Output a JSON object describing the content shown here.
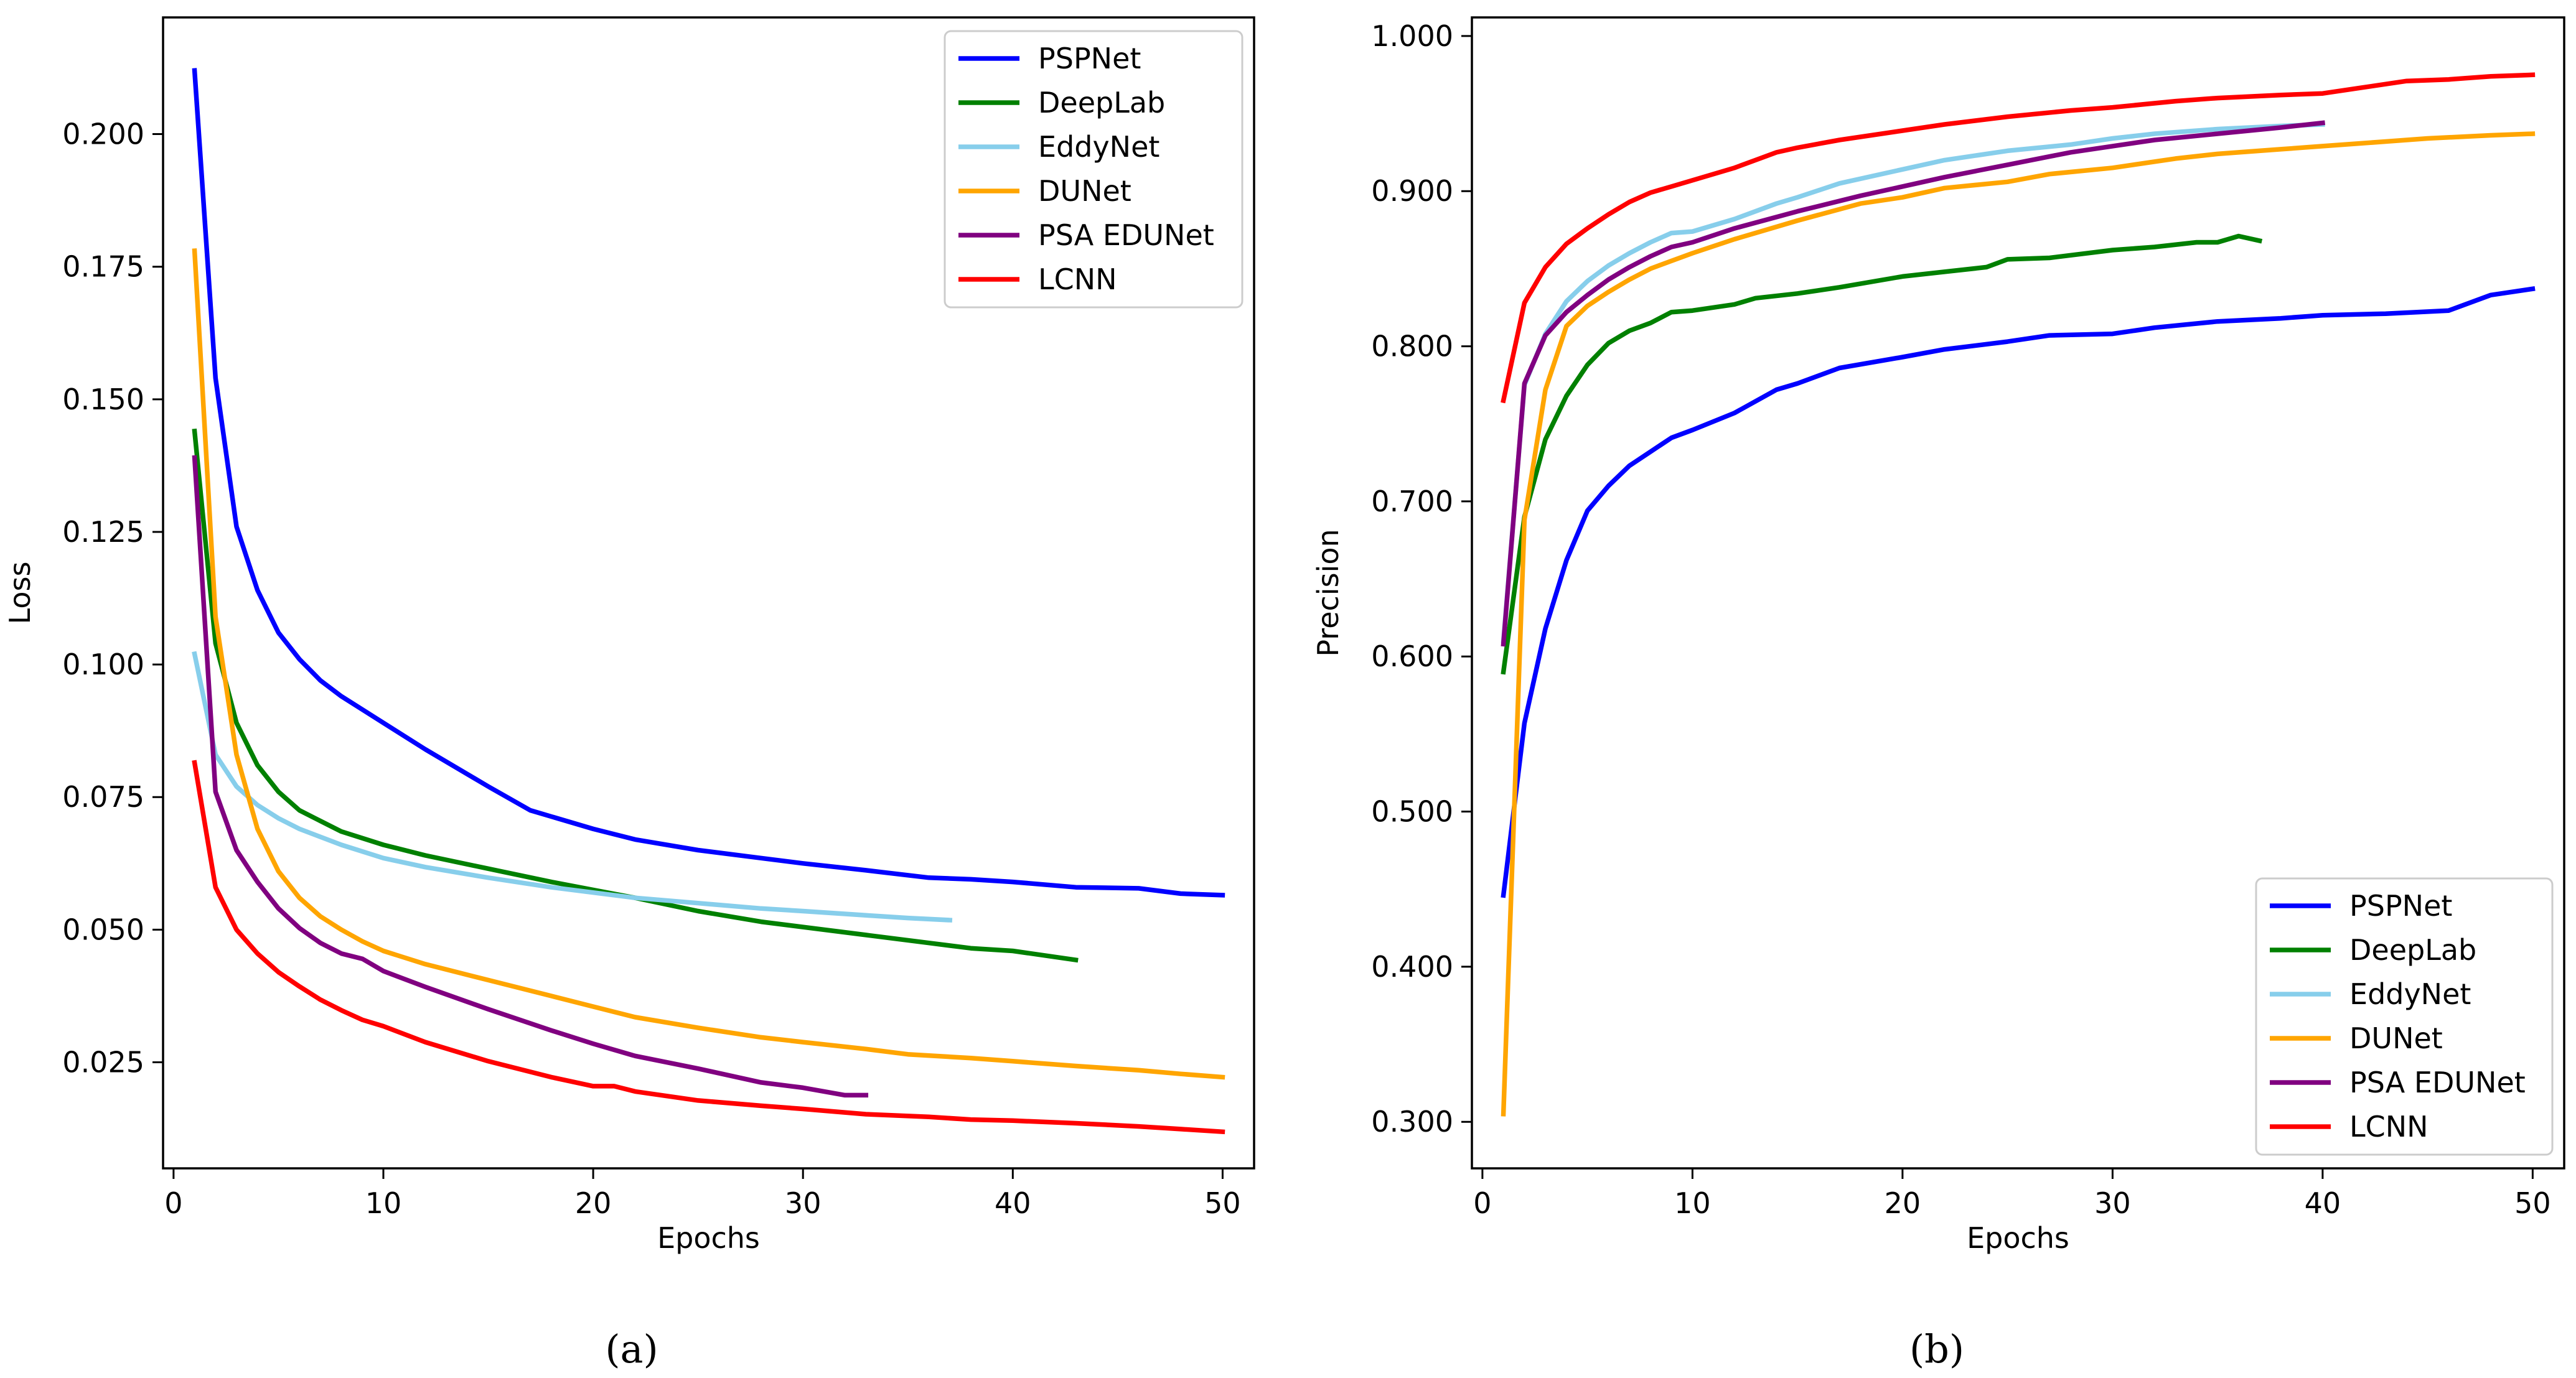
{
  "figure": {
    "caption_a": "(a)",
    "caption_b": "(b)"
  },
  "chart_data": [
    {
      "id": "a",
      "type": "line",
      "title": "",
      "xlabel": "Epochs",
      "ylabel": "Loss",
      "xlim": [
        -0.5,
        51.5
      ],
      "ylim": [
        0.005,
        0.222
      ],
      "xticks": [
        0,
        10,
        20,
        30,
        40,
        50
      ],
      "xtick_labels": [
        "0",
        "10",
        "20",
        "30",
        "40",
        "50"
      ],
      "yticks": [
        0.025,
        0.05,
        0.075,
        0.1,
        0.125,
        0.15,
        0.175,
        0.2
      ],
      "ytick_labels": [
        "0.025",
        "0.050",
        "0.075",
        "0.100",
        "0.125",
        "0.150",
        "0.175",
        "0.200"
      ],
      "grid": false,
      "legend_position": "top-right",
      "series": [
        {
          "name": "PSPNet",
          "color": "#0000ff",
          "x": [
            1,
            2,
            3,
            4,
            5,
            6,
            7,
            8,
            10,
            12,
            15,
            17,
            20,
            22,
            25,
            28,
            30,
            33,
            36,
            38,
            40,
            43,
            46,
            48,
            50
          ],
          "y": [
            0.212,
            0.154,
            0.126,
            0.114,
            0.106,
            0.101,
            0.097,
            0.094,
            0.089,
            0.084,
            0.077,
            0.0725,
            0.069,
            0.067,
            0.065,
            0.0635,
            0.0625,
            0.0612,
            0.0598,
            0.0595,
            0.059,
            0.058,
            0.0578,
            0.0568,
            0.0565
          ]
        },
        {
          "name": "DeepLab",
          "color": "#008000",
          "x": [
            1,
            2,
            3,
            4,
            5,
            6,
            7,
            8,
            10,
            12,
            15,
            18,
            20,
            22,
            25,
            28,
            30,
            33,
            36,
            38,
            40,
            43
          ],
          "y": [
            0.144,
            0.104,
            0.089,
            0.081,
            0.076,
            0.0725,
            0.0705,
            0.0685,
            0.066,
            0.064,
            0.0615,
            0.059,
            0.0575,
            0.056,
            0.0535,
            0.0515,
            0.0505,
            0.049,
            0.0475,
            0.0465,
            0.046,
            0.0443
          ]
        },
        {
          "name": "EddyNet",
          "color": "#87ceeb",
          "x": [
            1,
            2,
            3,
            4,
            5,
            6,
            8,
            10,
            12,
            15,
            18,
            20,
            22,
            25,
            28,
            30,
            33,
            35,
            37
          ],
          "y": [
            0.102,
            0.083,
            0.077,
            0.0735,
            0.071,
            0.069,
            0.066,
            0.0635,
            0.0618,
            0.0598,
            0.058,
            0.057,
            0.056,
            0.055,
            0.054,
            0.0535,
            0.0527,
            0.0522,
            0.0518
          ]
        },
        {
          "name": "DUNet",
          "color": "#ffa500",
          "x": [
            1,
            2,
            3,
            4,
            5,
            6,
            7,
            8,
            9,
            10,
            12,
            15,
            18,
            20,
            22,
            25,
            28,
            30,
            33,
            35,
            38,
            40,
            43,
            46,
            48,
            50
          ],
          "y": [
            0.178,
            0.109,
            0.083,
            0.069,
            0.061,
            0.056,
            0.0525,
            0.05,
            0.0478,
            0.046,
            0.0435,
            0.0405,
            0.0375,
            0.0355,
            0.0335,
            0.0315,
            0.0297,
            0.0288,
            0.0275,
            0.0265,
            0.0258,
            0.0252,
            0.0243,
            0.0235,
            0.0228,
            0.0222
          ]
        },
        {
          "name": "PSA EDUNet",
          "color": "#800080",
          "x": [
            1,
            2,
            3,
            4,
            5,
            6,
            7,
            8,
            9,
            10,
            12,
            15,
            18,
            20,
            22,
            25,
            28,
            30,
            32,
            33
          ],
          "y": [
            0.139,
            0.076,
            0.065,
            0.059,
            0.054,
            0.0503,
            0.0475,
            0.0455,
            0.0445,
            0.0422,
            0.0392,
            0.035,
            0.031,
            0.0285,
            0.0262,
            0.0238,
            0.0212,
            0.0202,
            0.0188,
            0.0188
          ]
        },
        {
          "name": "LCNN",
          "color": "#ff0000",
          "x": [
            1,
            2,
            3,
            4,
            5,
            6,
            7,
            8,
            9,
            10,
            12,
            15,
            18,
            20,
            21,
            22,
            25,
            28,
            30,
            33,
            36,
            38,
            40,
            43,
            46,
            48,
            50
          ],
          "y": [
            0.0815,
            0.058,
            0.05,
            0.0455,
            0.042,
            0.0393,
            0.0368,
            0.0348,
            0.033,
            0.0318,
            0.0288,
            0.0252,
            0.0222,
            0.0205,
            0.0205,
            0.0195,
            0.0178,
            0.0168,
            0.0162,
            0.0152,
            0.0147,
            0.0142,
            0.014,
            0.0135,
            0.0129,
            0.0124,
            0.0119
          ]
        }
      ]
    },
    {
      "id": "b",
      "type": "line",
      "title": "",
      "xlabel": "Epochs",
      "ylabel": "Precision",
      "xlim": [
        -0.5,
        51.5
      ],
      "ylim": [
        0.27,
        1.012
      ],
      "xticks": [
        0,
        10,
        20,
        30,
        40,
        50
      ],
      "xtick_labels": [
        "0",
        "10",
        "20",
        "30",
        "40",
        "50"
      ],
      "yticks": [
        0.3,
        0.4,
        0.5,
        0.6,
        0.7,
        0.8,
        0.9,
        1.0
      ],
      "ytick_labels": [
        "0.300",
        "0.400",
        "0.500",
        "0.600",
        "0.700",
        "0.800",
        "0.900",
        "1.000"
      ],
      "grid": false,
      "legend_position": "lower-right",
      "series": [
        {
          "name": "PSPNet",
          "color": "#0000ff",
          "x": [
            1,
            2,
            3,
            4,
            5,
            6,
            7,
            8,
            9,
            10,
            12,
            14,
            15,
            17,
            20,
            22,
            25,
            27,
            30,
            32,
            35,
            38,
            40,
            43,
            46,
            48,
            50
          ],
          "y": [
            0.446,
            0.557,
            0.618,
            0.662,
            0.694,
            0.71,
            0.723,
            0.732,
            0.741,
            0.746,
            0.757,
            0.772,
            0.776,
            0.786,
            0.793,
            0.798,
            0.803,
            0.807,
            0.808,
            0.812,
            0.816,
            0.818,
            0.82,
            0.821,
            0.823,
            0.833,
            0.837
          ]
        },
        {
          "name": "DeepLab",
          "color": "#008000",
          "x": [
            1,
            2,
            3,
            4,
            5,
            6,
            7,
            8,
            9,
            10,
            12,
            13,
            15,
            17,
            20,
            22,
            24,
            25,
            27,
            30,
            32,
            34,
            35,
            36,
            37
          ],
          "y": [
            0.59,
            0.69,
            0.74,
            0.768,
            0.788,
            0.802,
            0.81,
            0.815,
            0.822,
            0.823,
            0.827,
            0.831,
            0.834,
            0.838,
            0.845,
            0.848,
            0.851,
            0.856,
            0.857,
            0.862,
            0.864,
            0.867,
            0.867,
            0.871,
            0.868
          ]
        },
        {
          "name": "EddyNet",
          "color": "#87ceeb",
          "x": [
            1,
            2,
            3,
            4,
            5,
            6,
            7,
            8,
            9,
            10,
            11,
            12,
            13,
            14,
            15,
            17,
            20,
            22,
            25,
            28,
            30,
            32,
            35,
            38,
            40
          ],
          "y": [
            0.61,
            0.775,
            0.808,
            0.829,
            0.842,
            0.852,
            0.86,
            0.867,
            0.873,
            0.874,
            0.878,
            0.882,
            0.887,
            0.892,
            0.896,
            0.905,
            0.914,
            0.92,
            0.926,
            0.93,
            0.934,
            0.937,
            0.94,
            0.942,
            0.943
          ]
        },
        {
          "name": "DUNet",
          "color": "#ffa500",
          "x": [
            1,
            2,
            3,
            4,
            5,
            6,
            7,
            8,
            9,
            10,
            12,
            15,
            18,
            20,
            22,
            25,
            27,
            30,
            33,
            35,
            38,
            40,
            43,
            45,
            48,
            50
          ],
          "y": [
            0.305,
            0.688,
            0.772,
            0.813,
            0.826,
            0.835,
            0.843,
            0.85,
            0.855,
            0.86,
            0.869,
            0.881,
            0.892,
            0.896,
            0.902,
            0.906,
            0.911,
            0.915,
            0.921,
            0.924,
            0.927,
            0.929,
            0.932,
            0.934,
            0.936,
            0.937
          ]
        },
        {
          "name": "PSA EDUNet",
          "color": "#800080",
          "x": [
            1,
            2,
            3,
            4,
            5,
            6,
            7,
            8,
            9,
            10,
            12,
            15,
            18,
            20,
            22,
            25,
            28,
            30,
            32,
            35,
            38,
            40
          ],
          "y": [
            0.608,
            0.776,
            0.807,
            0.822,
            0.833,
            0.843,
            0.851,
            0.858,
            0.864,
            0.867,
            0.876,
            0.887,
            0.897,
            0.903,
            0.909,
            0.917,
            0.925,
            0.929,
            0.933,
            0.937,
            0.941,
            0.944
          ]
        },
        {
          "name": "LCNN",
          "color": "#ff0000",
          "x": [
            1,
            2,
            3,
            4,
            5,
            6,
            7,
            8,
            9,
            10,
            12,
            14,
            15,
            17,
            20,
            22,
            25,
            28,
            30,
            33,
            35,
            38,
            40,
            42,
            44,
            46,
            48,
            50
          ],
          "y": [
            0.765,
            0.828,
            0.851,
            0.866,
            0.876,
            0.885,
            0.893,
            0.899,
            0.903,
            0.907,
            0.915,
            0.925,
            0.928,
            0.933,
            0.939,
            0.943,
            0.948,
            0.952,
            0.954,
            0.958,
            0.96,
            0.962,
            0.963,
            0.967,
            0.971,
            0.972,
            0.974,
            0.975
          ]
        }
      ]
    }
  ]
}
